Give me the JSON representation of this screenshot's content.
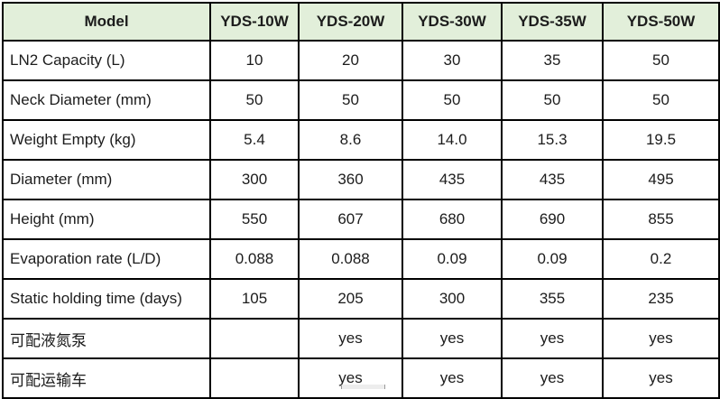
{
  "table": {
    "columns": [
      "Model",
      "YDS-10W",
      "YDS-20W",
      "YDS-30W",
      "YDS-35W",
      "YDS-50W"
    ],
    "rows": [
      {
        "label": "LN2 Capacity (L)",
        "values": [
          "10",
          "20",
          "30",
          "35",
          "50"
        ]
      },
      {
        "label": "Neck Diameter (mm)",
        "values": [
          "50",
          "50",
          "50",
          "50",
          "50"
        ]
      },
      {
        "label": "Weight Empty (kg)",
        "values": [
          "5.4",
          "8.6",
          "14.0",
          "15.3",
          "19.5"
        ]
      },
      {
        "label": "Diameter (mm)",
        "values": [
          "300",
          "360",
          "435",
          "435",
          "495"
        ]
      },
      {
        "label": "Height (mm)",
        "values": [
          "550",
          "607",
          "680",
          "690",
          "855"
        ]
      },
      {
        "label": "Evaporation rate (L/D)",
        "values": [
          "0.088",
          "0.088",
          "0.09",
          "0.09",
          "0.2"
        ]
      },
      {
        "label": "Static holding time (days)",
        "values": [
          "105",
          "205",
          "300",
          "355",
          "235"
        ]
      },
      {
        "label": "可配液氮泵",
        "values": [
          "",
          "yes",
          "yes",
          "yes",
          "yes"
        ]
      },
      {
        "label": "可配运输车",
        "values": [
          "",
          "yes",
          "yes",
          "yes",
          "yes"
        ]
      }
    ]
  },
  "colors": {
    "header_bg": "#e2efda",
    "border": "#000000",
    "text": "#1c1c1c"
  }
}
